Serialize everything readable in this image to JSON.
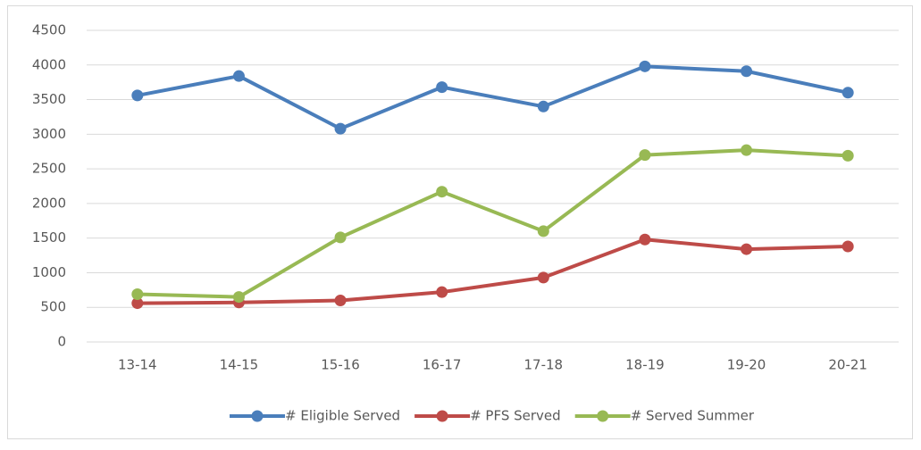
{
  "chart_data": {
    "type": "line",
    "categories": [
      "13-14",
      "14-15",
      "15-16",
      "16-17",
      "17-18",
      "18-19",
      "19-20",
      "20-21"
    ],
    "series": [
      {
        "name": "# Eligible Served",
        "color": "#4a7ebb",
        "values": [
          3560,
          3840,
          3080,
          3680,
          3400,
          3980,
          3910,
          3600
        ]
      },
      {
        "name": "# PFS Served",
        "color": "#be4b48",
        "values": [
          560,
          570,
          600,
          720,
          930,
          1480,
          1340,
          1380
        ]
      },
      {
        "name": "# Served Summer",
        "color": "#98b954",
        "values": [
          690,
          650,
          1510,
          2170,
          1600,
          2700,
          2770,
          2690
        ]
      }
    ],
    "ylim": [
      0,
      4500
    ],
    "yticks": [
      0,
      500,
      1000,
      1500,
      2000,
      2500,
      3000,
      3500,
      4000,
      4500
    ],
    "grid": true,
    "legend": "bottom"
  }
}
